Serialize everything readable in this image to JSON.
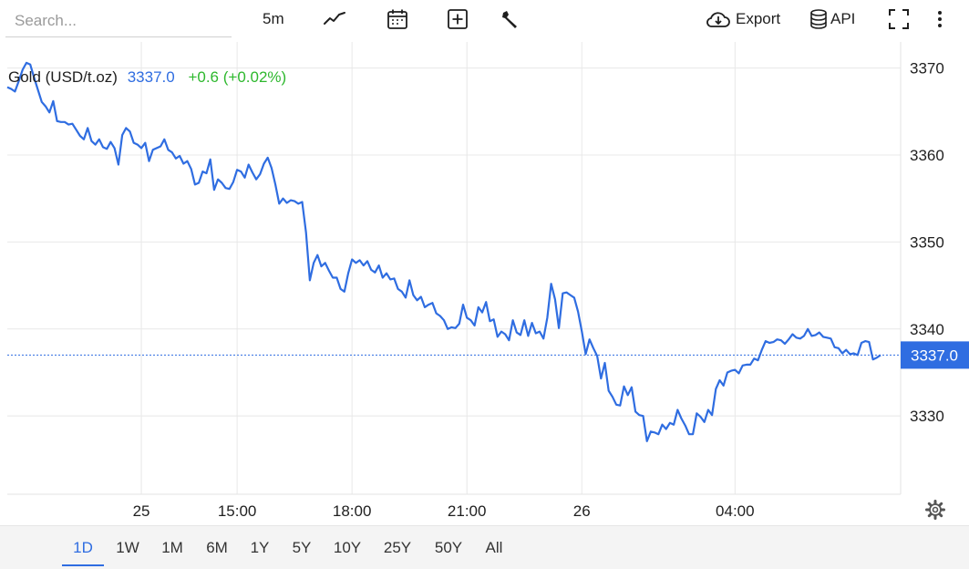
{
  "toolbar": {
    "search_placeholder": "Search...",
    "interval_label": "5m",
    "export_label": "Export",
    "api_label": "API",
    "icons": [
      "line-chart-icon",
      "calendar-icon",
      "add-box-icon",
      "wrench-icon",
      "cloud-download-icon",
      "database-icon",
      "fullscreen-icon",
      "more-vertical-icon"
    ]
  },
  "header": {
    "instrument": "Gold (USD/t.oz)",
    "price": "3337.0",
    "change": "+0.6 (+0.02%)",
    "price_color": "#2f6de1",
    "change_color": "#2eb82e"
  },
  "chart_data": {
    "type": "line",
    "ylim": [
      3321.0,
      3373.0
    ],
    "y_ticks": [
      3330,
      3340,
      3350,
      3360,
      3370
    ],
    "x_tick_labels": [
      "25",
      "15:00",
      "18:00",
      "21:00",
      "26",
      "04:00"
    ],
    "x_tick_positions": [
      35,
      60,
      90,
      120,
      150,
      190
    ],
    "last_value": 3337.0,
    "last_value_label": "3337.0",
    "line_color": "#2f6de1",
    "grid": true,
    "series": [
      {
        "values": [
          3367.8,
          3367.6,
          3367.3,
          3368.5,
          3369.8,
          3370.6,
          3370.4,
          3368.9,
          3367.5,
          3366.1,
          3365.6,
          3364.9,
          3366.2,
          3363.9,
          3363.8,
          3363.8,
          3363.5,
          3363.6,
          3362.9,
          3362.2,
          3361.8,
          3363.1,
          3361.6,
          3361.2,
          3361.8,
          3360.9,
          3360.7,
          3361.5,
          3360.8,
          3358.9,
          3362.3,
          3363.1,
          3362.7,
          3361.4,
          3361.2,
          3360.8,
          3361.4,
          3359.3,
          3360.6,
          3360.8,
          3361.0,
          3361.8,
          3360.6,
          3360.3,
          3359.6,
          3359.9,
          3359.0,
          3359.3,
          3358.4,
          3356.6,
          3356.8,
          3358.1,
          3357.9,
          3359.5,
          3356.0,
          3357.2,
          3356.8,
          3356.2,
          3356.1,
          3356.9,
          3358.3,
          3358.1,
          3357.4,
          3358.9,
          3358.0,
          3357.2,
          3357.8,
          3359.0,
          3359.7,
          3358.5,
          3356.6,
          3354.4,
          3355.0,
          3354.5,
          3354.8,
          3354.7,
          3354.4,
          3354.6,
          3351.1,
          3345.6,
          3347.6,
          3348.5,
          3347.2,
          3347.6,
          3346.7,
          3345.9,
          3345.9,
          3344.6,
          3344.3,
          3346.4,
          3348.0,
          3347.6,
          3347.9,
          3347.3,
          3347.8,
          3346.8,
          3346.5,
          3347.3,
          3345.9,
          3346.4,
          3345.7,
          3345.8,
          3344.6,
          3344.3,
          3343.6,
          3345.6,
          3343.9,
          3343.3,
          3343.7,
          3342.5,
          3342.8,
          3343.0,
          3341.8,
          3341.5,
          3341.0,
          3340.0,
          3340.2,
          3340.1,
          3340.6,
          3342.8,
          3341.3,
          3341.0,
          3340.4,
          3342.5,
          3341.9,
          3343.1,
          3340.9,
          3341.1,
          3339.1,
          3339.7,
          3339.4,
          3338.7,
          3341.0,
          3339.6,
          3339.3,
          3341.0,
          3339.2,
          3340.7,
          3339.5,
          3339.7,
          3338.9,
          3341.3,
          3345.2,
          3343.4,
          3340.1,
          3344.1,
          3344.2,
          3343.9,
          3343.6,
          3342.0,
          3339.7,
          3337.1,
          3338.8,
          3337.8,
          3336.9,
          3334.3,
          3336.1,
          3332.9,
          3332.2,
          3331.3,
          3331.2,
          3333.4,
          3332.4,
          3333.3,
          3330.5,
          3330.1,
          3330.0,
          3327.1,
          3328.2,
          3328.1,
          3327.9,
          3329.0,
          3328.5,
          3329.2,
          3329.0,
          3330.7,
          3329.7,
          3328.9,
          3327.9,
          3327.9,
          3330.3,
          3329.9,
          3329.3,
          3330.7,
          3330.1,
          3333.1,
          3334.1,
          3333.5,
          3335.0,
          3335.2,
          3335.3,
          3334.9,
          3335.8,
          3335.9,
          3335.9,
          3336.6,
          3336.4,
          3337.6,
          3338.6,
          3338.4,
          3338.5,
          3338.8,
          3338.7,
          3338.3,
          3338.8,
          3339.4,
          3339.0,
          3338.9,
          3339.2,
          3340.0,
          3339.2,
          3339.3,
          3339.6,
          3339.1,
          3339.0,
          3338.9,
          3337.9,
          3337.8,
          3337.2,
          3337.6,
          3337.1,
          3337.2,
          3337.0,
          3338.4,
          3338.6,
          3338.5,
          3336.5,
          3336.7,
          3337.0
        ]
      }
    ]
  },
  "range_selector": {
    "options": [
      "1D",
      "1W",
      "1M",
      "6M",
      "1Y",
      "5Y",
      "10Y",
      "25Y",
      "50Y",
      "All"
    ],
    "active": "1D"
  }
}
